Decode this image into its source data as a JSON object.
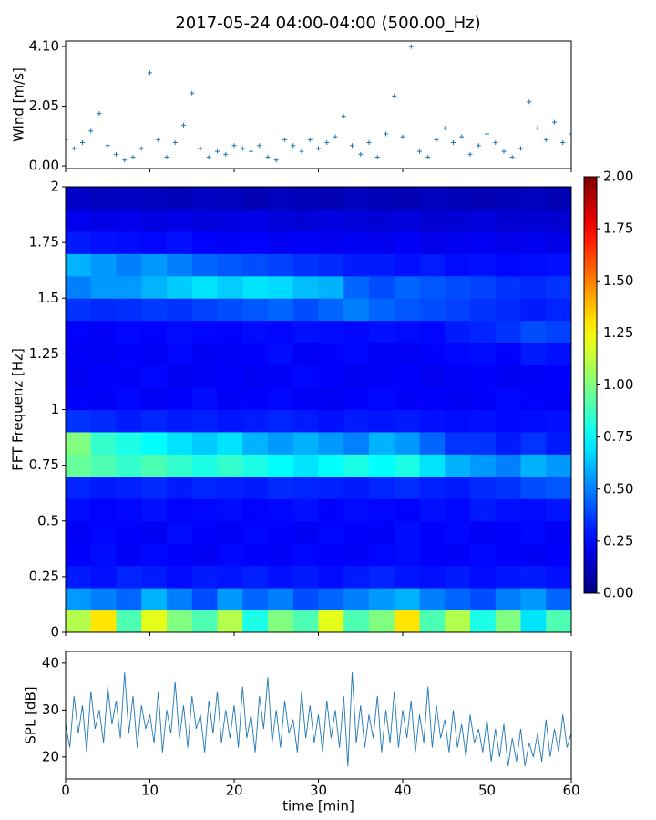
{
  "chart_data": [
    {
      "type": "scatter",
      "title": "2017-05-24 04:00-04:00 (500.00_Hz)",
      "ylabel": "Wind [m/s]",
      "color": "#1f77b4",
      "marker": "+",
      "x": [
        0,
        1,
        2,
        3,
        4,
        5,
        6,
        7,
        8,
        9,
        10,
        11,
        12,
        13,
        14,
        15,
        16,
        17,
        18,
        19,
        20,
        21,
        22,
        23,
        24,
        25,
        26,
        27,
        28,
        29,
        30,
        31,
        32,
        33,
        34,
        35,
        36,
        37,
        38,
        39,
        40,
        41,
        42,
        43,
        44,
        45,
        46,
        47,
        48,
        49,
        50,
        51,
        52,
        53,
        54,
        55,
        56,
        57,
        58,
        59,
        60
      ],
      "values": [
        0.9,
        0.6,
        0.8,
        1.2,
        1.8,
        0.7,
        0.4,
        0.2,
        0.3,
        0.6,
        3.2,
        0.9,
        0.3,
        0.8,
        1.4,
        2.5,
        0.6,
        0.3,
        0.5,
        0.4,
        0.7,
        0.6,
        0.5,
        0.7,
        0.3,
        0.2,
        0.9,
        0.7,
        0.5,
        0.9,
        0.6,
        0.8,
        1.0,
        1.7,
        0.7,
        0.4,
        0.8,
        0.3,
        1.1,
        2.4,
        1.0,
        4.1,
        0.5,
        0.3,
        0.9,
        1.3,
        0.8,
        1.0,
        0.4,
        0.7,
        1.1,
        0.8,
        0.5,
        0.3,
        0.6,
        2.2,
        1.3,
        0.9,
        1.5,
        0.8,
        1.1
      ],
      "xlim": [
        0,
        60
      ],
      "ylim": [
        -0.09,
        4.29
      ],
      "yticks": [
        {
          "value": 0,
          "label": "0.00"
        },
        {
          "value": 2.05,
          "label": "2.05"
        },
        {
          "value": 4.1,
          "label": "4.10"
        }
      ]
    },
    {
      "type": "heatmap",
      "ylabel": "FFT Frequenz [Hz]",
      "colormap": "jet",
      "xbins": [
        0,
        3,
        6,
        9,
        12,
        15,
        18,
        21,
        24,
        27,
        30,
        33,
        36,
        39,
        42,
        45,
        48,
        51,
        54,
        57,
        60
      ],
      "ybins": [
        0,
        0.1,
        0.2,
        0.3,
        0.4,
        0.5,
        0.6,
        0.7,
        0.8,
        0.9,
        1.0,
        1.1,
        1.2,
        1.3,
        1.4,
        1.5,
        1.6,
        1.7,
        1.8,
        1.9,
        2.0
      ],
      "z": [
        [
          1.1,
          1.3,
          0.9,
          1.2,
          1.0,
          0.9,
          1.1,
          0.8,
          1.0,
          0.9,
          1.2,
          0.9,
          1.0,
          1.3,
          0.9,
          1.1,
          0.8,
          1.0,
          0.7,
          0.9
        ],
        [
          0.55,
          0.5,
          0.45,
          0.6,
          0.5,
          0.4,
          0.55,
          0.45,
          0.5,
          0.4,
          0.45,
          0.5,
          0.55,
          0.6,
          0.5,
          0.45,
          0.4,
          0.5,
          0.55,
          0.45
        ],
        [
          0.3,
          0.28,
          0.32,
          0.3,
          0.27,
          0.3,
          0.29,
          0.31,
          0.28,
          0.3,
          0.27,
          0.3,
          0.32,
          0.29,
          0.28,
          0.3,
          0.27,
          0.29,
          0.3,
          0.28
        ],
        [
          0.25,
          0.27,
          0.24,
          0.26,
          0.25,
          0.23,
          0.26,
          0.25,
          0.24,
          0.26,
          0.25,
          0.24,
          0.26,
          0.27,
          0.25,
          0.24,
          0.26,
          0.25,
          0.23,
          0.25
        ],
        [
          0.24,
          0.26,
          0.25,
          0.23,
          0.27,
          0.25,
          0.24,
          0.26,
          0.25,
          0.23,
          0.26,
          0.25,
          0.24,
          0.27,
          0.25,
          0.26,
          0.24,
          0.25,
          0.26,
          0.24
        ],
        [
          0.27,
          0.25,
          0.26,
          0.28,
          0.25,
          0.26,
          0.27,
          0.25,
          0.26,
          0.28,
          0.25,
          0.27,
          0.26,
          0.25,
          0.28,
          0.26,
          0.3,
          0.28,
          0.27,
          0.29
        ],
        [
          0.32,
          0.3,
          0.31,
          0.33,
          0.3,
          0.32,
          0.31,
          0.3,
          0.33,
          0.32,
          0.31,
          0.3,
          0.32,
          0.34,
          0.31,
          0.3,
          0.33,
          0.35,
          0.4,
          0.42
        ],
        [
          0.95,
          0.9,
          0.85,
          0.9,
          0.85,
          0.8,
          0.85,
          0.8,
          0.75,
          0.7,
          0.75,
          0.8,
          0.75,
          0.8,
          0.7,
          0.6,
          0.55,
          0.5,
          0.6,
          0.55
        ],
        [
          1.0,
          0.85,
          0.8,
          0.75,
          0.7,
          0.65,
          0.7,
          0.6,
          0.55,
          0.6,
          0.55,
          0.5,
          0.6,
          0.55,
          0.45,
          0.35,
          0.35,
          0.3,
          0.35,
          0.3
        ],
        [
          0.35,
          0.33,
          0.3,
          0.32,
          0.3,
          0.31,
          0.29,
          0.3,
          0.32,
          0.3,
          0.28,
          0.3,
          0.29,
          0.3,
          0.28,
          0.27,
          0.28,
          0.26,
          0.27,
          0.28
        ],
        [
          0.25,
          0.24,
          0.26,
          0.23,
          0.25,
          0.27,
          0.24,
          0.25,
          0.26,
          0.24,
          0.23,
          0.25,
          0.26,
          0.24,
          0.25,
          0.23,
          0.24,
          0.26,
          0.25,
          0.24
        ],
        [
          0.23,
          0.25,
          0.24,
          0.26,
          0.22,
          0.24,
          0.25,
          0.23,
          0.24,
          0.26,
          0.25,
          0.23,
          0.24,
          0.25,
          0.22,
          0.24,
          0.25,
          0.23,
          0.24,
          0.25
        ],
        [
          0.24,
          0.23,
          0.25,
          0.24,
          0.26,
          0.23,
          0.24,
          0.25,
          0.27,
          0.24,
          0.25,
          0.26,
          0.24,
          0.23,
          0.25,
          0.26,
          0.27,
          0.25,
          0.3,
          0.28
        ],
        [
          0.25,
          0.24,
          0.26,
          0.25,
          0.27,
          0.26,
          0.25,
          0.27,
          0.26,
          0.28,
          0.27,
          0.26,
          0.28,
          0.27,
          0.26,
          0.3,
          0.32,
          0.35,
          0.4,
          0.38
        ],
        [
          0.35,
          0.33,
          0.34,
          0.36,
          0.35,
          0.38,
          0.4,
          0.42,
          0.45,
          0.4,
          0.45,
          0.5,
          0.45,
          0.42,
          0.4,
          0.38,
          0.35,
          0.33,
          0.3,
          0.32
        ],
        [
          0.5,
          0.55,
          0.55,
          0.6,
          0.65,
          0.7,
          0.65,
          0.7,
          0.68,
          0.62,
          0.6,
          0.45,
          0.4,
          0.45,
          0.42,
          0.4,
          0.38,
          0.35,
          0.33,
          0.35
        ],
        [
          0.6,
          0.55,
          0.5,
          0.55,
          0.5,
          0.45,
          0.42,
          0.4,
          0.38,
          0.35,
          0.33,
          0.3,
          0.3,
          0.28,
          0.3,
          0.27,
          0.28,
          0.26,
          0.27,
          0.28
        ],
        [
          0.3,
          0.28,
          0.27,
          0.26,
          0.28,
          0.25,
          0.24,
          0.25,
          0.23,
          0.24,
          0.22,
          0.23,
          0.22,
          0.24,
          0.21,
          0.22,
          0.23,
          0.21,
          0.22,
          0.2
        ],
        [
          0.22,
          0.2,
          0.21,
          0.19,
          0.2,
          0.18,
          0.19,
          0.2,
          0.18,
          0.17,
          0.19,
          0.18,
          0.17,
          0.18,
          0.16,
          0.17,
          0.18,
          0.16,
          0.17,
          0.16
        ],
        [
          0.14,
          0.12,
          0.13,
          0.12,
          0.11,
          0.13,
          0.12,
          0.1,
          0.12,
          0.11,
          0.1,
          0.12,
          0.11,
          0.1,
          0.12,
          0.11,
          0.1,
          0.11,
          0.12,
          0.1
        ]
      ],
      "xlim": [
        0,
        60
      ],
      "ylim": [
        0,
        2
      ],
      "yticks": [
        0,
        0.25,
        0.5,
        0.75,
        1,
        1.25,
        1.5,
        1.75,
        2
      ],
      "clim": [
        0,
        2
      ],
      "cticks": [
        {
          "value": 0,
          "label": "0.00"
        },
        {
          "value": 0.25,
          "label": "0.25"
        },
        {
          "value": 0.5,
          "label": "0.50"
        },
        {
          "value": 0.75,
          "label": "0.75"
        },
        {
          "value": 1,
          "label": "1.00"
        },
        {
          "value": 1.25,
          "label": "1.25"
        },
        {
          "value": 1.5,
          "label": "1.50"
        },
        {
          "value": 1.75,
          "label": "1.75"
        },
        {
          "value": 2,
          "label": "2.00"
        }
      ]
    },
    {
      "type": "line",
      "ylabel": "SPL [dB]",
      "xlabel": "time [min]",
      "color": "#1f77b4",
      "x": [
        0,
        0.5,
        1,
        1.5,
        2,
        2.5,
        3,
        3.5,
        4,
        4.5,
        5,
        5.5,
        6,
        6.5,
        7,
        7.5,
        8,
        8.5,
        9,
        9.5,
        10,
        10.5,
        11,
        11.5,
        12,
        12.5,
        13,
        13.5,
        14,
        14.5,
        15,
        15.5,
        16,
        16.5,
        17,
        17.5,
        18,
        18.5,
        19,
        19.5,
        20,
        20.5,
        21,
        21.5,
        22,
        22.5,
        23,
        23.5,
        24,
        24.5,
        25,
        25.5,
        26,
        26.5,
        27,
        27.5,
        28,
        28.5,
        29,
        29.5,
        30,
        30.5,
        31,
        31.5,
        32,
        32.5,
        33,
        33.5,
        34,
        34.5,
        35,
        35.5,
        36,
        36.5,
        37,
        37.5,
        38,
        38.5,
        39,
        39.5,
        40,
        40.5,
        41,
        41.5,
        42,
        42.5,
        43,
        43.5,
        44,
        44.5,
        45,
        45.5,
        46,
        46.5,
        47,
        47.5,
        48,
        48.5,
        49,
        49.5,
        50,
        50.5,
        51,
        51.5,
        52,
        52.5,
        53,
        53.5,
        54,
        54.5,
        55,
        55.5,
        56,
        56.5,
        57,
        57.5,
        58,
        58.5,
        59,
        59.5,
        60
      ],
      "values": [
        27,
        22,
        33,
        25,
        31,
        21,
        34,
        26,
        30,
        23,
        35,
        27,
        32,
        24,
        38,
        25,
        33,
        22,
        31,
        26,
        29,
        23,
        34,
        21,
        30,
        25,
        36,
        24,
        31,
        22,
        33,
        26,
        29,
        21,
        32,
        25,
        34,
        23,
        30,
        24,
        31,
        22,
        35,
        24,
        29,
        21,
        33,
        26,
        37,
        23,
        30,
        22,
        32,
        25,
        28,
        21,
        34,
        24,
        31,
        23,
        29,
        21,
        32,
        24,
        30,
        22,
        33,
        18,
        38,
        23,
        31,
        22,
        29,
        24,
        33,
        21,
        30,
        23,
        34,
        22,
        30,
        24,
        32,
        21,
        29,
        23,
        35,
        22,
        31,
        24,
        28,
        21,
        30,
        22,
        27,
        20,
        29,
        23,
        26,
        21,
        28,
        19,
        26,
        20,
        27,
        18,
        24,
        19,
        26,
        18,
        23,
        20,
        25,
        19,
        28,
        20,
        26,
        21,
        29,
        22,
        25
      ],
      "xlim": [
        0,
        60
      ],
      "ylim": [
        15.3,
        42.5
      ],
      "xticks": [
        0,
        10,
        20,
        30,
        40,
        50,
        60
      ],
      "yticks": [
        20,
        30,
        40
      ]
    }
  ]
}
